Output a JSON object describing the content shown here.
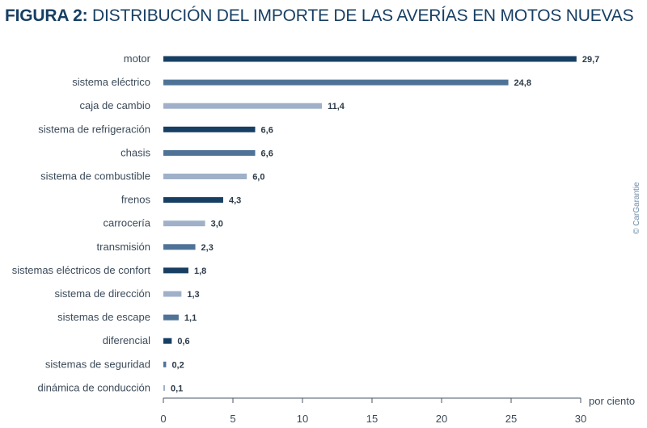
{
  "title": {
    "bold": "FIGURA 2:",
    "rest": " DISTRIBUCIÓN DEL IMPORTE DE LAS AVERÍAS EN MOTOS NUEVAS"
  },
  "credit": "© CarGarantie",
  "colors": {
    "dark": "#173f63",
    "mid": "#4f7397",
    "light": "#9fb0c8",
    "axis": "#4a5563"
  },
  "chart_data": {
    "type": "bar",
    "orientation": "horizontal",
    "categories": [
      "motor",
      "sistema eléctrico",
      "caja de cambio",
      "sistema de refrigeración",
      "chasis",
      "sistema de combustible",
      "frenos",
      "carrocería",
      "transmisión",
      "sistemas eléctricos de confort",
      "sistema de dirección",
      "sistemas de escape",
      "diferencial",
      "sistemas de seguridad",
      "dinámica de conducción"
    ],
    "values": [
      29.7,
      24.8,
      11.4,
      6.6,
      6.6,
      6.0,
      4.3,
      3.0,
      2.3,
      1.8,
      1.3,
      1.1,
      0.6,
      0.2,
      0.1
    ],
    "value_labels": [
      "29,7",
      "24,8",
      "11,4",
      "6,6",
      "6,6",
      "6,0",
      "4,3",
      "3,0",
      "2,3",
      "1,8",
      "1,3",
      "1,1",
      "0,6",
      "0,2",
      "0,1"
    ],
    "bar_color_keys": [
      "dark",
      "mid",
      "light",
      "dark",
      "mid",
      "light",
      "dark",
      "light",
      "mid",
      "dark",
      "light",
      "mid",
      "dark",
      "mid",
      "light"
    ],
    "x_ticks": [
      0,
      5,
      10,
      15,
      20,
      25,
      30
    ],
    "x_tick_labels": [
      "0",
      "5",
      "10",
      "15",
      "20",
      "25",
      "30"
    ],
    "xlim": [
      0,
      30
    ],
    "xlabel": "por ciento"
  }
}
